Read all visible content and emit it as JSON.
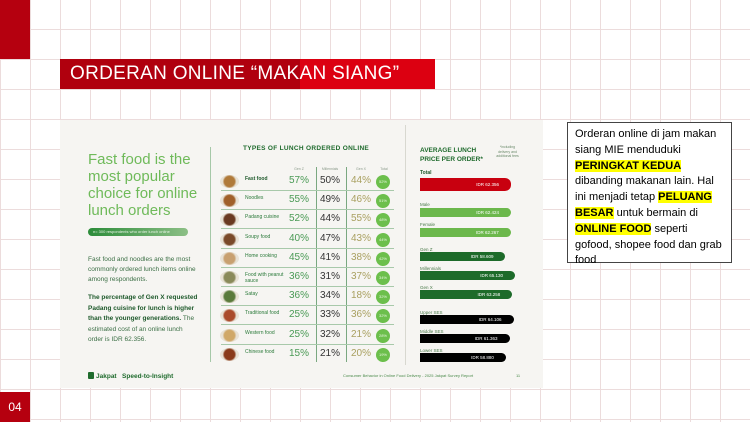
{
  "slide": {
    "title": "ORDERAN ONLINE “MAKAN SIANG”",
    "page_number": "04"
  },
  "infographic": {
    "headline": "Fast food is the most popular choice for online lunch orders",
    "pill": "n= 300 respondents who order lunch online",
    "body1": "Fast food and noodles are the most commonly ordered lunch items online among respondents.",
    "body2_bold": "The percentage of Gen X requested Padang cuisine for lunch is higher than the younger generations.",
    "body2_rest": " The estimated cost of an online lunch order is IDR 62.356.",
    "logo": "Jakpat",
    "tagline": "Speed-to-Insight",
    "table_title": "TYPES OF LUNCH ORDERED ONLINE",
    "columns": [
      "Gen Z",
      "Millennials",
      "Gen X",
      "Total"
    ],
    "rows": [
      {
        "name": "Fast food",
        "genz": "57%",
        "mill": "50%",
        "genx": "44%",
        "total": "52%",
        "color": "#b07a3a"
      },
      {
        "name": "Noodles",
        "genz": "55%",
        "mill": "49%",
        "genx": "46%",
        "total": "51%",
        "color": "#a0602a"
      },
      {
        "name": "Padang cuisine",
        "genz": "52%",
        "mill": "44%",
        "genx": "55%",
        "total": "48%",
        "color": "#6a3a22"
      },
      {
        "name": "Soupy food",
        "genz": "40%",
        "mill": "47%",
        "genx": "43%",
        "total": "44%",
        "color": "#7a4a2a"
      },
      {
        "name": "Home cooking",
        "genz": "45%",
        "mill": "41%",
        "genx": "38%",
        "total": "42%",
        "color": "#c8a070"
      },
      {
        "name": "Food with peanut sauce",
        "genz": "36%",
        "mill": "31%",
        "genx": "37%",
        "total": "34%",
        "color": "#8a8a5a"
      },
      {
        "name": "Satay",
        "genz": "36%",
        "mill": "34%",
        "genx": "18%",
        "total": "32%",
        "color": "#5a7a3a"
      },
      {
        "name": "Traditional food",
        "genz": "25%",
        "mill": "33%",
        "genx": "36%",
        "total": "32%",
        "color": "#aa4a2a"
      },
      {
        "name": "Western food",
        "genz": "25%",
        "mill": "32%",
        "genx": "21%",
        "total": "28%",
        "color": "#d0a868"
      },
      {
        "name": "Chinese food",
        "genz": "15%",
        "mill": "21%",
        "genx": "20%",
        "total": "19%",
        "color": "#8a3a1a"
      }
    ],
    "price_title": "AVERAGE LUNCH PRICE PER ORDER*",
    "price_note": "*including delivery and additional fees",
    "prices": [
      {
        "label": "Total",
        "value": "IDR 62.356",
        "color": "#c8000f"
      },
      {
        "label": "Male",
        "value": "IDR 62.424",
        "color": "#6cb84c"
      },
      {
        "label": "Female",
        "value": "IDR 62.267",
        "color": "#6cb84c"
      },
      {
        "label": "Gen Z",
        "value": "IDR 58.609",
        "color": "#1d6b2a"
      },
      {
        "label": "Millennials",
        "value": "IDR 65.130",
        "color": "#1d6b2a"
      },
      {
        "label": "Gen X",
        "value": "IDR 63.258",
        "color": "#1d6b2a"
      },
      {
        "label": "Upper SES",
        "value": "IDR 64.106",
        "color": "#000000"
      },
      {
        "label": "Middle SES",
        "value": "IDR 61.363",
        "color": "#000000"
      },
      {
        "label": "Lower SES",
        "value": "IDR 58.880",
        "color": "#000000"
      }
    ],
    "footer": "Consumer Behavior in Online Food Delivery - 2025 Jakpat Survey Report",
    "footer_page": "11"
  },
  "note": {
    "t1": "Orderan online di jam makan siang MIE menduduki ",
    "h1": "PERINGKAT KEDUA",
    "t2": " dibanding makanan lain. Hal ini menjadi tetap ",
    "h2": "PELUANG BESAR",
    "t3": " untuk bermain di ",
    "h3": "ONLINE FOOD",
    "t4": " seperti gofood, shopee food dan grab food"
  }
}
